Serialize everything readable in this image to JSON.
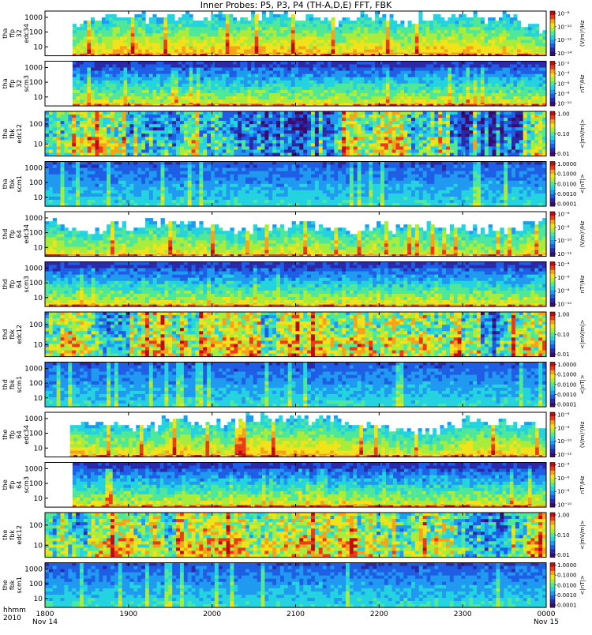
{
  "chart_data": {
    "type": "heatmap",
    "title": "Inner Probes: P5, P3, P4 (TH-A,D,E) FFT, FBK",
    "x": {
      "label_rows": [
        "hhmm",
        "2010"
      ],
      "ticks": [
        {
          "label": "1800",
          "sub": "Nov 14",
          "hour": 18
        },
        {
          "label": "1900",
          "sub": "",
          "hour": 19
        },
        {
          "label": "2000",
          "sub": "",
          "hour": 20
        },
        {
          "label": "2100",
          "sub": "",
          "hour": 21
        },
        {
          "label": "2200",
          "sub": "",
          "hour": 22
        },
        {
          "label": "2300",
          "sub": "",
          "hour": 23
        },
        {
          "label": "0000",
          "sub": "Nov 15",
          "hour": 24
        }
      ],
      "range_hours": [
        18,
        24
      ]
    },
    "panels": [
      {
        "ylabel": [
          "tha",
          "ffp",
          "32",
          "edc34"
        ],
        "yticks": [
          "1000",
          "100",
          "10"
        ],
        "cbar_label": "(V/m)²/Hz",
        "cbar_ticks": [
          "10⁻⁸",
          "10⁻¹⁰",
          "10⁻¹²",
          "10⁻¹⁴"
        ],
        "kind": "ffp_e",
        "data_start_hour": 18.33
      },
      {
        "ylabel": [
          "tha",
          "ffp",
          "32",
          "scm3"
        ],
        "yticks": [
          "1000",
          "100",
          "10"
        ],
        "cbar_label": "nT²/Hz",
        "cbar_ticks": [
          "10⁻²",
          "10⁻⁴",
          "10⁻⁶",
          "10⁻⁸",
          "10⁻¹⁰"
        ],
        "kind": "ffp_b",
        "data_start_hour": 18.33
      },
      {
        "ylabel": [
          "tha",
          "fbk",
          "edc12"
        ],
        "yticks": [
          "100",
          "10"
        ],
        "cbar_label": "<|mV/m|>",
        "cbar_ticks": [
          "1.00",
          "0.10",
          "0.01"
        ],
        "kind": "fbk_e",
        "data_start_hour": 18.0
      },
      {
        "ylabel": [
          "tha",
          "fbk",
          "scm1"
        ],
        "yticks": [
          "1000",
          "100",
          "10"
        ],
        "cbar_label": "<|nT|>",
        "cbar_ticks": [
          "1.0000",
          "0.1000",
          "0.0100",
          "0.0010",
          "0.0001"
        ],
        "kind": "fbk_b",
        "data_start_hour": 18.0
      },
      {
        "ylabel": [
          "thd",
          "ffp",
          "64",
          "edc34"
        ],
        "yticks": [
          "1000",
          "100",
          "10"
        ],
        "cbar_label": "(V/m)²/Hz",
        "cbar_ticks": [
          "10⁻⁶",
          "10⁻⁸",
          "10⁻¹⁰",
          "10⁻¹²"
        ],
        "kind": "ffp_e",
        "data_start_hour": 18.0
      },
      {
        "ylabel": [
          "thd",
          "ffp",
          "64",
          "scm3"
        ],
        "yticks": [
          "1000",
          "100",
          "10"
        ],
        "cbar_label": "nT²/Hz",
        "cbar_ticks": [
          "10⁻⁴",
          "10⁻⁶",
          "10⁻⁸",
          "10⁻¹⁰"
        ],
        "kind": "ffp_b",
        "data_start_hour": 18.0
      },
      {
        "ylabel": [
          "thd",
          "fbk",
          "edc12"
        ],
        "yticks": [
          "100",
          "10"
        ],
        "cbar_label": "<|mV/m|>",
        "cbar_ticks": [
          "1.00",
          "0.10",
          "0.01"
        ],
        "kind": "fbk_e",
        "data_start_hour": 18.0
      },
      {
        "ylabel": [
          "thd",
          "fbk",
          "scm1"
        ],
        "yticks": [
          "1000",
          "100",
          "10"
        ],
        "cbar_label": "<|nT|>",
        "cbar_ticks": [
          "1.0000",
          "0.1000",
          "0.0100",
          "0.0010",
          "0.0001"
        ],
        "kind": "fbk_b",
        "data_start_hour": 18.0
      },
      {
        "ylabel": [
          "the",
          "ffp",
          "64",
          "edc34"
        ],
        "yticks": [
          "1000",
          "100",
          "10"
        ],
        "cbar_label": "(V/m)²/Hz",
        "cbar_ticks": [
          "10⁻⁶",
          "10⁻⁸",
          "10⁻¹⁰",
          "10⁻¹²"
        ],
        "kind": "ffp_e",
        "data_start_hour": 18.3
      },
      {
        "ylabel": [
          "the",
          "ffp",
          "64",
          "scm3"
        ],
        "yticks": [
          "1000",
          "100",
          "10"
        ],
        "cbar_label": "nT²/Hz",
        "cbar_ticks": [
          "10⁻⁴",
          "10⁻⁶",
          "10⁻⁸",
          "10⁻¹⁰"
        ],
        "kind": "ffp_b",
        "data_start_hour": 18.33
      },
      {
        "ylabel": [
          "the",
          "fbk",
          "edc12"
        ],
        "yticks": [
          "100",
          "10"
        ],
        "cbar_label": "<|mV/m|>",
        "cbar_ticks": [
          "1.00",
          "0.10",
          "0.01"
        ],
        "kind": "fbk_e",
        "data_start_hour": 18.0
      },
      {
        "ylabel": [
          "the",
          "fbk",
          "scm1"
        ],
        "yticks": [
          "1000",
          "100",
          "10"
        ],
        "cbar_label": "<|nT|>",
        "cbar_ticks": [
          "1.0000",
          "0.1000",
          "0.0100",
          "0.0010",
          "0.0001"
        ],
        "kind": "fbk_b",
        "data_start_hour": 18.0
      }
    ],
    "colormap": [
      "#3a0a6e",
      "#2a2aa8",
      "#1e5ee6",
      "#1f9af0",
      "#25d3e0",
      "#4fe89a",
      "#a8ec3c",
      "#f2e21a",
      "#f6a21a",
      "#ea3c16",
      "#c00c10"
    ]
  }
}
